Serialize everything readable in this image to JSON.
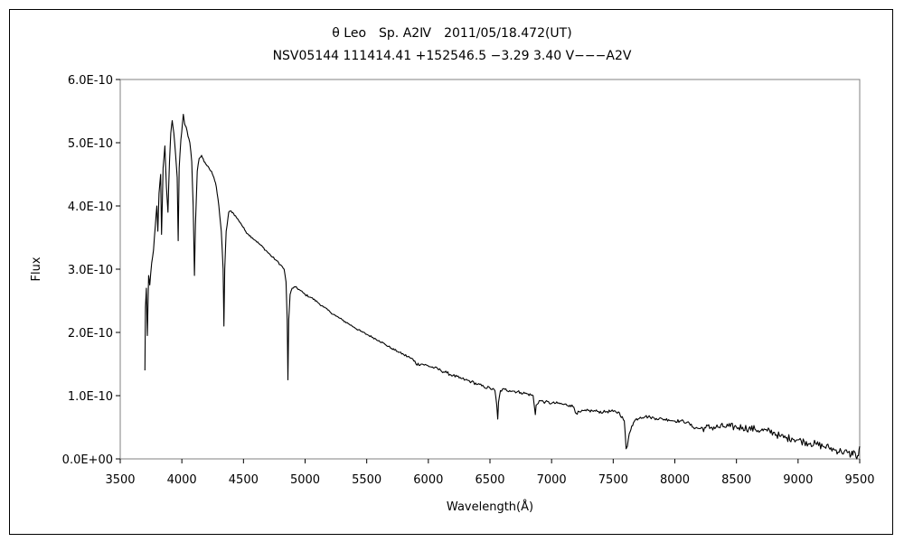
{
  "chart_data": {
    "type": "line",
    "title_line1": "θ Leo　Sp. A2Ⅳ　2011/05/18.472(UT)",
    "title_line2": "NSV05144 111414.41 +152546.5 −3.29 3.40 V−−−A2V",
    "xlabel": "Wavelength(Å)",
    "ylabel": "Flux",
    "xlim": [
      3500,
      9500
    ],
    "ylim": [
      0,
      6e-10
    ],
    "x_ticks": [
      "3500",
      "4000",
      "4500",
      "5000",
      "5500",
      "6000",
      "6500",
      "7000",
      "7500",
      "8000",
      "8500",
      "9000",
      "9500"
    ],
    "y_ticks": [
      "0.0E+00",
      "1.0E-10",
      "2.0E-10",
      "3.0E-10",
      "4.0E-10",
      "5.0E-10",
      "6.0E-10"
    ],
    "grid": false,
    "legend": "none",
    "line_color": "#000000",
    "series": [
      {
        "points": [
          [
            3700,
            1.4e-10
          ],
          [
            3705,
            2.4e-10
          ],
          [
            3712,
            2.7e-10
          ],
          [
            3720,
            1.95e-10
          ],
          [
            3730,
            2.9e-10
          ],
          [
            3740,
            2.75e-10
          ],
          [
            3755,
            3.1e-10
          ],
          [
            3770,
            3.3e-10
          ],
          [
            3785,
            3.7e-10
          ],
          [
            3797,
            4e-10
          ],
          [
            3805,
            3.6e-10
          ],
          [
            3815,
            4.2e-10
          ],
          [
            3828,
            4.5e-10
          ],
          [
            3835,
            3.55e-10
          ],
          [
            3848,
            4.6e-10
          ],
          [
            3862,
            4.95e-10
          ],
          [
            3875,
            4.3e-10
          ],
          [
            3887,
            3.9e-10
          ],
          [
            3900,
            4.7e-10
          ],
          [
            3910,
            5.15e-10
          ],
          [
            3922,
            5.35e-10
          ],
          [
            3935,
            5.15e-10
          ],
          [
            3950,
            4.8e-10
          ],
          [
            3962,
            4.45e-10
          ],
          [
            3970,
            3.45e-10
          ],
          [
            3978,
            4.6e-10
          ],
          [
            3992,
            5.05e-10
          ],
          [
            4005,
            5.3e-10
          ],
          [
            4012,
            5.45e-10
          ],
          [
            4022,
            5.3e-10
          ],
          [
            4035,
            5.25e-10
          ],
          [
            4050,
            5.1e-10
          ],
          [
            4065,
            5e-10
          ],
          [
            4080,
            4.7e-10
          ],
          [
            4092,
            4e-10
          ],
          [
            4102,
            2.9e-10
          ],
          [
            4110,
            3.7e-10
          ],
          [
            4125,
            4.55e-10
          ],
          [
            4140,
            4.75e-10
          ],
          [
            4160,
            4.8e-10
          ],
          [
            4180,
            4.7e-10
          ],
          [
            4200,
            4.65e-10
          ],
          [
            4220,
            4.6e-10
          ],
          [
            4240,
            4.55e-10
          ],
          [
            4260,
            4.45e-10
          ],
          [
            4280,
            4.3e-10
          ],
          [
            4300,
            4e-10
          ],
          [
            4320,
            3.6e-10
          ],
          [
            4335,
            3e-10
          ],
          [
            4341,
            2.1e-10
          ],
          [
            4348,
            3e-10
          ],
          [
            4360,
            3.6e-10
          ],
          [
            4380,
            3.9e-10
          ],
          [
            4400,
            3.92e-10
          ],
          [
            4420,
            3.88e-10
          ],
          [
            4450,
            3.8e-10
          ],
          [
            4480,
            3.72e-10
          ],
          [
            4510,
            3.62e-10
          ],
          [
            4540,
            3.55e-10
          ],
          [
            4570,
            3.5e-10
          ],
          [
            4600,
            3.45e-10
          ],
          [
            4640,
            3.38e-10
          ],
          [
            4680,
            3.3e-10
          ],
          [
            4720,
            3.22e-10
          ],
          [
            4760,
            3.15e-10
          ],
          [
            4800,
            3.07e-10
          ],
          [
            4830,
            3e-10
          ],
          [
            4845,
            2.8e-10
          ],
          [
            4855,
            2.2e-10
          ],
          [
            4861,
            1.25e-10
          ],
          [
            4867,
            2.2e-10
          ],
          [
            4878,
            2.6e-10
          ],
          [
            4895,
            2.7e-10
          ],
          [
            4920,
            2.72e-10
          ],
          [
            4950,
            2.68e-10
          ],
          [
            5000,
            2.6e-10
          ],
          [
            5050,
            2.55e-10
          ],
          [
            5100,
            2.48e-10
          ],
          [
            5150,
            2.4e-10
          ],
          [
            5200,
            2.33e-10
          ],
          [
            5250,
            2.26e-10
          ],
          [
            5300,
            2.2e-10
          ],
          [
            5350,
            2.14e-10
          ],
          [
            5400,
            2.08e-10
          ],
          [
            5450,
            2.02e-10
          ],
          [
            5500,
            1.97e-10
          ],
          [
            5550,
            1.92e-10
          ],
          [
            5600,
            1.87e-10
          ],
          [
            5650,
            1.81e-10
          ],
          [
            5700,
            1.75e-10
          ],
          [
            5750,
            1.7e-10
          ],
          [
            5800,
            1.65e-10
          ],
          [
            5850,
            1.6e-10
          ],
          [
            5890,
            1.55e-10
          ],
          [
            5900,
            1.5e-10
          ],
          [
            5950,
            1.5e-10
          ],
          [
            6000,
            1.47e-10
          ],
          [
            6050,
            1.44e-10
          ],
          [
            6100,
            1.4e-10
          ],
          [
            6150,
            1.36e-10
          ],
          [
            6200,
            1.32e-10
          ],
          [
            6250,
            1.28e-10
          ],
          [
            6300,
            1.25e-10
          ],
          [
            6350,
            1.22e-10
          ],
          [
            6400,
            1.18e-10
          ],
          [
            6450,
            1.14e-10
          ],
          [
            6500,
            1.12e-10
          ],
          [
            6540,
            1.08e-10
          ],
          [
            6555,
            8.5e-11
          ],
          [
            6563,
            6.3e-11
          ],
          [
            6570,
            9e-11
          ],
          [
            6585,
            1.08e-10
          ],
          [
            6620,
            1.1e-10
          ],
          [
            6660,
            1.08e-10
          ],
          [
            6700,
            1.07e-10
          ],
          [
            6750,
            1.05e-10
          ],
          [
            6800,
            1.03e-10
          ],
          [
            6850,
            1e-10
          ],
          [
            6868,
            7e-11
          ],
          [
            6875,
            8.5e-11
          ],
          [
            6900,
            9.2e-11
          ],
          [
            6950,
            9e-11
          ],
          [
            7000,
            8.8e-11
          ],
          [
            7050,
            8.8e-11
          ],
          [
            7100,
            8.6e-11
          ],
          [
            7150,
            8.5e-11
          ],
          [
            7180,
            8.2e-11
          ],
          [
            7200,
            7.2e-11
          ],
          [
            7230,
            7.4e-11
          ],
          [
            7280,
            7.6e-11
          ],
          [
            7330,
            7.6e-11
          ],
          [
            7380,
            7.5e-11
          ],
          [
            7420,
            7.4e-11
          ],
          [
            7450,
            7.5e-11
          ],
          [
            7500,
            7.5e-11
          ],
          [
            7550,
            7.3e-11
          ],
          [
            7590,
            6e-11
          ],
          [
            7605,
            1.6e-11
          ],
          [
            7615,
            2e-11
          ],
          [
            7630,
            4e-11
          ],
          [
            7650,
            5.2e-11
          ],
          [
            7680,
            6.2e-11
          ],
          [
            7720,
            6.6e-11
          ],
          [
            7760,
            6.7e-11
          ],
          [
            7800,
            6.6e-11
          ],
          [
            7850,
            6.4e-11
          ],
          [
            7900,
            6.3e-11
          ],
          [
            7950,
            6.2e-11
          ],
          [
            8000,
            6e-11
          ],
          [
            8050,
            6e-11
          ],
          [
            8100,
            5.8e-11
          ],
          [
            8150,
            5e-11
          ],
          [
            8200,
            4.8e-11
          ],
          [
            8250,
            4.9e-11
          ],
          [
            8300,
            5e-11
          ],
          [
            8350,
            5e-11
          ],
          [
            8400,
            5.1e-11
          ],
          [
            8450,
            5.1e-11
          ],
          [
            8500,
            5e-11
          ],
          [
            8550,
            5e-11
          ],
          [
            8600,
            4.8e-11
          ],
          [
            8650,
            4.7e-11
          ],
          [
            8700,
            4.5e-11
          ],
          [
            8750,
            4.4e-11
          ],
          [
            8800,
            4.2e-11
          ],
          [
            8850,
            3.6e-11
          ],
          [
            8900,
            3.3e-11
          ],
          [
            8950,
            3.3e-11
          ],
          [
            9000,
            3e-11
          ],
          [
            9050,
            2.7e-11
          ],
          [
            9100,
            2.5e-11
          ],
          [
            9150,
            2.3e-11
          ],
          [
            9200,
            2e-11
          ],
          [
            9250,
            1.8e-11
          ],
          [
            9300,
            1.4e-11
          ],
          [
            9350,
            1.2e-11
          ],
          [
            9400,
            1e-11
          ],
          [
            9430,
            6e-12
          ],
          [
            9450,
            1.3e-11
          ],
          [
            9470,
            3e-12
          ],
          [
            9490,
            5e-12
          ],
          [
            9495,
            1.5e-11
          ],
          [
            9500,
            2e-11
          ]
        ]
      }
    ]
  }
}
